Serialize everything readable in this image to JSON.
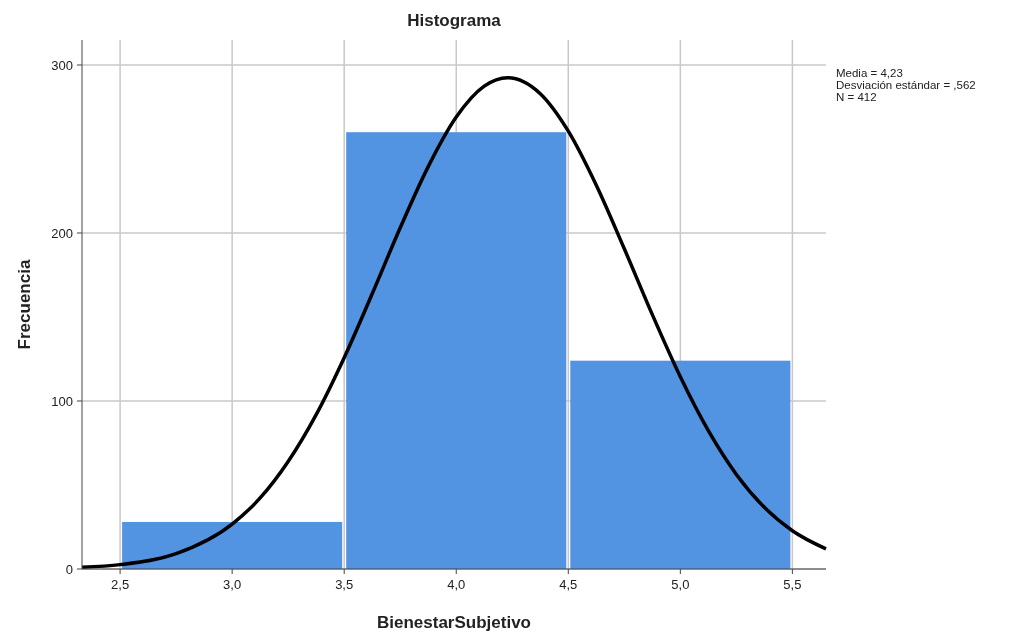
{
  "chart_data": {
    "type": "histogram",
    "title": "Histograma",
    "xlabel": "BienestarSubjetivo",
    "ylabel": "Frecuencia",
    "bins": [
      2.5,
      3.5,
      4.5,
      5.5
    ],
    "values": [
      28,
      260,
      124
    ],
    "color": "#5294e2",
    "xlim": [
      2.33,
      5.65
    ],
    "xticks": [
      {
        "value": 2.5,
        "label": "2,5"
      },
      {
        "value": 3,
        "label": "3,0"
      },
      {
        "value": 3.5,
        "label": "3,5"
      },
      {
        "value": 4,
        "label": "4,0"
      },
      {
        "value": 4.5,
        "label": "4,5"
      },
      {
        "value": 5,
        "label": "5,0"
      },
      {
        "value": 5.5,
        "label": "5,5"
      }
    ],
    "ylim": [
      0,
      300
    ],
    "yticks": [
      0,
      100,
      200,
      300
    ],
    "grid": true,
    "series": [
      {
        "type": "line",
        "color": "#000000",
        "x": [
          2.33,
          2.5,
          2.75,
          3.0,
          3.125,
          3.25,
          3.375,
          3.5,
          3.625,
          3.75,
          3.875,
          4.0,
          4.125,
          4.23,
          4.375,
          4.5,
          4.625,
          4.75,
          4.875,
          5.0,
          5.125,
          5.25,
          5.375,
          5.5,
          5.65
        ],
        "values": [
          1.0,
          2.6,
          9.1,
          26.7,
          42.3,
          64.0,
          91.9,
          125.8,
          163.8,
          203.1,
          239.5,
          269.0,
          287.4,
          292.4,
          282.9,
          260.6,
          228.4,
          190.6,
          151.4,
          114.4,
          82.3,
          56.3,
          36.7,
          22.8,
          12.0
        ]
      }
    ],
    "annotations": [
      "Media = 4,23",
      "Desviación estándar = ,562",
      "N = 412"
    ]
  }
}
